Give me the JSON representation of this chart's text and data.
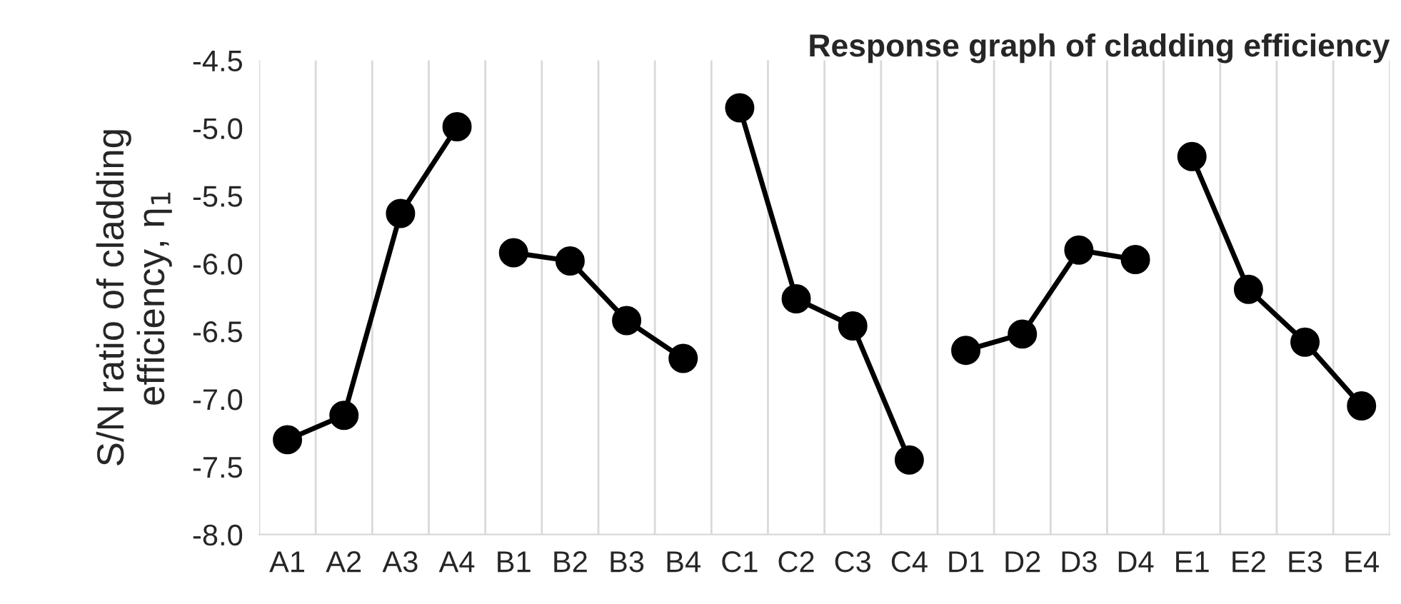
{
  "chart_data": {
    "type": "line",
    "title": "Response graph of cladding efficiency",
    "ylabel": "S/N ratio of cladding\nefficiency, η$_{1}$",
    "categories": [
      "A1",
      "A2",
      "A3",
      "A4",
      "B1",
      "B2",
      "B3",
      "B4",
      "C1",
      "C2",
      "C3",
      "C4",
      "D1",
      "D2",
      "D3",
      "D4",
      "E1",
      "E2",
      "E3",
      "E4"
    ],
    "series": [
      {
        "color": "#000000",
        "values": [
          -7.3,
          -7.12,
          -5.63,
          -4.99,
          null,
          null,
          null,
          null,
          null,
          null,
          null,
          null,
          null,
          null,
          null,
          null,
          null,
          null,
          null,
          null
        ]
      },
      {
        "color": "#000000",
        "values": [
          null,
          null,
          null,
          null,
          -5.92,
          -5.98,
          -6.42,
          -6.7,
          null,
          null,
          null,
          null,
          null,
          null,
          null,
          null,
          null,
          null,
          null,
          null
        ]
      },
      {
        "color": "#000000",
        "values": [
          null,
          null,
          null,
          null,
          null,
          null,
          null,
          null,
          -4.85,
          -6.26,
          -6.46,
          -7.45,
          null,
          null,
          null,
          null,
          null,
          null,
          null,
          null
        ]
      },
      {
        "color": "#000000",
        "values": [
          null,
          null,
          null,
          null,
          null,
          null,
          null,
          null,
          null,
          null,
          null,
          null,
          -6.64,
          -6.52,
          -5.9,
          -5.97,
          null,
          null,
          null,
          null
        ]
      },
      {
        "color": "#000000",
        "values": [
          null,
          null,
          null,
          null,
          null,
          null,
          null,
          null,
          null,
          null,
          null,
          null,
          null,
          null,
          null,
          null,
          -5.21,
          -6.19,
          -6.58,
          -7.05
        ]
      }
    ],
    "ylim": [
      -8.0,
      -4.5
    ],
    "yticks": [
      {
        "value": -8.0,
        "label": "-8.0"
      },
      {
        "value": -7.5,
        "label": "-7.5"
      },
      {
        "value": -7.0,
        "label": "-7.0"
      },
      {
        "value": -6.5,
        "label": "-6.5"
      },
      {
        "value": -6.0,
        "label": "-6.0"
      },
      {
        "value": -5.5,
        "label": "-5.5"
      },
      {
        "value": -5.0,
        "label": "-5.0"
      },
      {
        "value": -4.5,
        "label": "-4.5"
      }
    ],
    "grid": "x",
    "marker": "circle",
    "line_style": "solid",
    "legend": false
  }
}
